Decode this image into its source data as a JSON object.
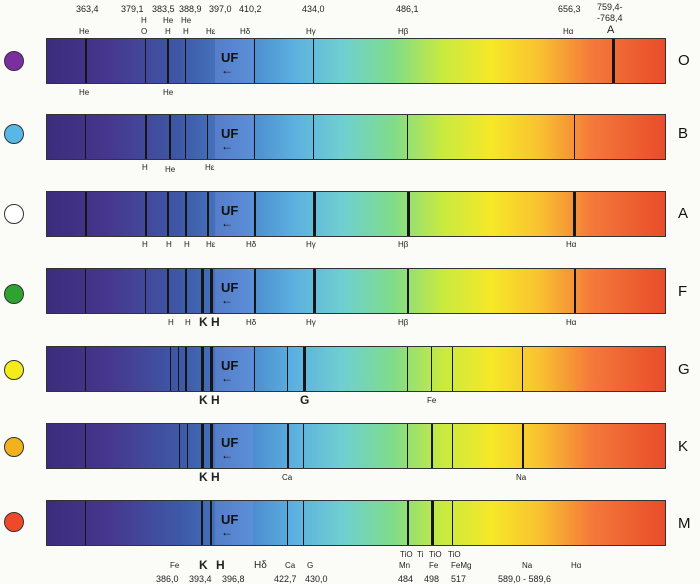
{
  "top_wavelengths": [
    "363,4",
    "379,1",
    "383,5",
    "388,9",
    "397,0",
    "410,2",
    "434,0",
    "486,1",
    "656,3",
    "759,4-",
    "-768,4"
  ],
  "top_elements": [
    "He",
    "H",
    "O",
    "He",
    "He",
    "H",
    "H",
    "Hε",
    "Hδ",
    "Hγ",
    "Hβ",
    "Hα",
    "A"
  ],
  "bottom_wavelengths": [
    "386,0",
    "393,4",
    "396,8",
    "422,7",
    "430,0",
    "484",
    "498",
    "517",
    "589,0 - 589,6"
  ],
  "uf_label": "UF",
  "uf_arrow": "←",
  "classes": [
    {
      "name": "O",
      "color": "#7a2ea0",
      "labels": [
        "He",
        "He"
      ]
    },
    {
      "name": "B",
      "color": "#57b8e8",
      "labels": [
        "H",
        "He",
        "Hε"
      ]
    },
    {
      "name": "A",
      "color": "#ffffff",
      "labels": [
        "H",
        "H",
        "H",
        "Hε",
        "Hδ",
        "Hγ",
        "Hβ",
        "Hα"
      ]
    },
    {
      "name": "F",
      "color": "#2fa332",
      "labels": [
        "H",
        "H",
        "K",
        "H",
        "Hδ",
        "Hγ",
        "Hβ",
        "Hα"
      ]
    },
    {
      "name": "G",
      "color": "#f3ec1a",
      "labels": [
        "K",
        "H",
        "G",
        "Fe"
      ]
    },
    {
      "name": "K",
      "color": "#f2b21e",
      "labels": [
        "K",
        "H",
        "Ca",
        "Na"
      ]
    },
    {
      "name": "M",
      "color": "#ee4a2a",
      "labels": [
        "Fe",
        "K",
        "H",
        "Hδ",
        "Ca",
        "G",
        "TiO",
        "Ti",
        "TiO",
        "TiO",
        "Mn",
        "Fe",
        "FeMg",
        "Na",
        "Hα"
      ]
    }
  ]
}
